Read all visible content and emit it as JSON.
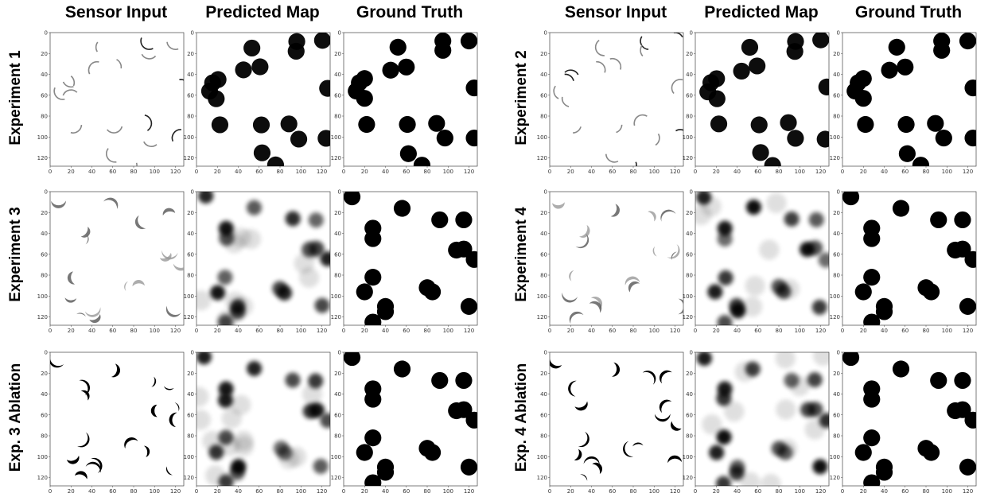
{
  "column_titles": [
    "Sensor Input",
    "Predicted Map",
    "Ground Truth",
    "Sensor Input",
    "Predicted Map",
    "Ground Truth"
  ],
  "row_labels": [
    "Experiment 1",
    "Experiment 2",
    "Experiment 3",
    "Experiment 4",
    "Exp. 3 Ablation",
    "Exp. 4 Ablation"
  ],
  "axis": {
    "x_ticks": [
      "0",
      "20",
      "40",
      "60",
      "80",
      "100",
      "120"
    ],
    "y_ticks": [
      "0",
      "20",
      "40",
      "60",
      "80",
      "100",
      "120"
    ],
    "range": [
      0,
      128
    ]
  },
  "scenes": {
    "A": [
      [
        22,
        88
      ],
      [
        61,
        88
      ],
      [
        75,
        127
      ],
      [
        95,
        8
      ],
      [
        95,
        17
      ],
      [
        120,
        8
      ],
      [
        60,
        33
      ],
      [
        45,
        36
      ],
      [
        52,
        14
      ],
      [
        20,
        44
      ],
      [
        12,
        56
      ],
      [
        15,
        48
      ],
      [
        20,
        63
      ],
      [
        125,
        53
      ],
      [
        89,
        87
      ],
      [
        97,
        101
      ],
      [
        62,
        116
      ],
      [
        125,
        101
      ]
    ],
    "B": [
      [
        8,
        5
      ],
      [
        28,
        35
      ],
      [
        28,
        45
      ],
      [
        28,
        82
      ],
      [
        56,
        16
      ],
      [
        92,
        27
      ],
      [
        115,
        27
      ],
      [
        108,
        56
      ],
      [
        115,
        55
      ],
      [
        125,
        65
      ],
      [
        80,
        92
      ],
      [
        85,
        96
      ],
      [
        40,
        110
      ],
      [
        40,
        115
      ],
      [
        120,
        110
      ],
      [
        28,
        125
      ],
      [
        20,
        96
      ]
    ]
  },
  "panels": {
    "exp1_gt": "A",
    "exp2_gt": "A",
    "exp3_gt": "B",
    "exp4_gt": "B",
    "abl3_gt": "B",
    "abl4_gt": "B"
  }
}
